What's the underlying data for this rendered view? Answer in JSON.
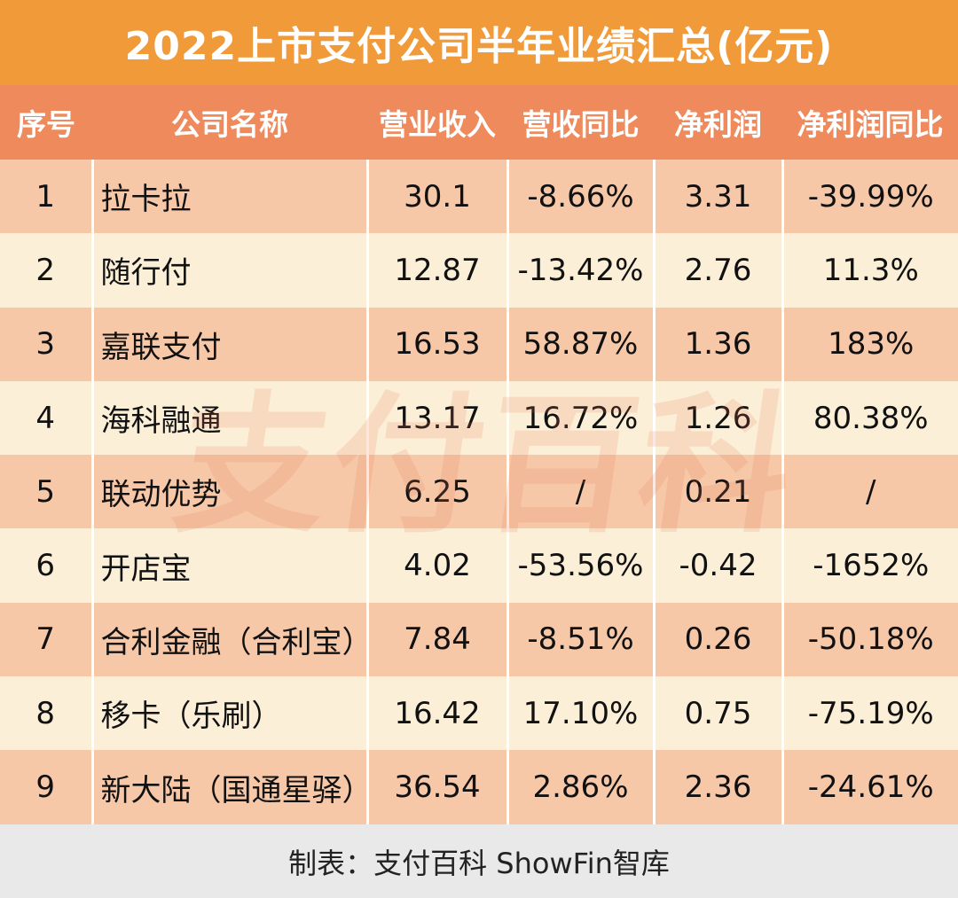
{
  "title": "2022上市支付公司半年业绩汇总(亿元)",
  "headers": [
    "序号",
    "公司名称",
    "营业收入",
    "营收同比",
    "净利润",
    "净利润同比"
  ],
  "rows": [
    {
      "no": "1",
      "name": "拉卡拉",
      "revenue": "30.1",
      "revenue_yoy": "-8.66%",
      "net_profit": "3.31",
      "net_profit_yoy": "-39.99%"
    },
    {
      "no": "2",
      "name": "随行付",
      "revenue": "12.87",
      "revenue_yoy": "-13.42%",
      "net_profit": "2.76",
      "net_profit_yoy": "11.3%"
    },
    {
      "no": "3",
      "name": "嘉联支付",
      "revenue": "16.53",
      "revenue_yoy": "58.87%",
      "net_profit": "1.36",
      "net_profit_yoy": "183%"
    },
    {
      "no": "4",
      "name": "海科融通",
      "revenue": "13.17",
      "revenue_yoy": "16.72%",
      "net_profit": "1.26",
      "net_profit_yoy": "80.38%"
    },
    {
      "no": "5",
      "name": "联动优势",
      "revenue": "6.25",
      "revenue_yoy": "/",
      "net_profit": "0.21",
      "net_profit_yoy": "/"
    },
    {
      "no": "6",
      "name": "开店宝",
      "revenue": "4.02",
      "revenue_yoy": "-53.56%",
      "net_profit": "-0.42",
      "net_profit_yoy": "-1652%"
    },
    {
      "no": "7",
      "name": "合利金融（合利宝）",
      "revenue": "7.84",
      "revenue_yoy": "-8.51%",
      "net_profit": "0.26",
      "net_profit_yoy": "-50.18%"
    },
    {
      "no": "8",
      "name": "移卡（乐刷）",
      "revenue": "16.42",
      "revenue_yoy": "17.10%",
      "net_profit": "0.75",
      "net_profit_yoy": "-75.19%"
    },
    {
      "no": "9",
      "name": "新大陆（国通星驿）",
      "revenue": "36.54",
      "revenue_yoy": "2.86%",
      "net_profit": "2.36",
      "net_profit_yoy": "-24.61%"
    }
  ],
  "watermark": "支付百科",
  "footer": "制表：支付百科 ShowFin智库"
}
